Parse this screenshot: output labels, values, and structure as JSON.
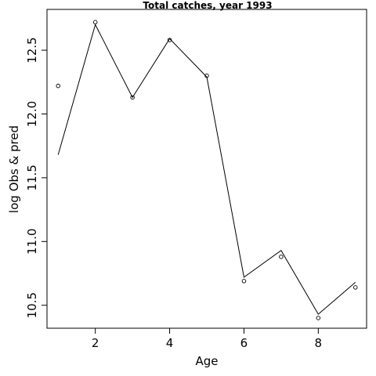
{
  "chart_data": {
    "type": "line",
    "title": "Total catches, year 1993",
    "xlabel": "Age",
    "ylabel": "log Obs & pred",
    "xlim": [
      0.7,
      9.3
    ],
    "ylim": [
      10.32,
      12.82
    ],
    "x_ticks": [
      2,
      4,
      6,
      8
    ],
    "y_ticks": [
      10.5,
      11.0,
      11.5,
      12.0,
      12.5
    ],
    "x_tick_labels": [
      "2",
      "4",
      "6",
      "8"
    ],
    "y_tick_labels": [
      "10.5",
      "11.0",
      "11.5",
      "12.0",
      "12.5"
    ],
    "grid": false,
    "legend": "none",
    "series": [
      {
        "style": "points",
        "x": [
          1,
          2,
          3,
          4,
          5,
          6,
          7,
          8,
          9
        ],
        "values": [
          12.22,
          12.72,
          12.13,
          12.58,
          12.3,
          10.69,
          10.88,
          10.4,
          10.64
        ]
      },
      {
        "style": "line",
        "x": [
          1,
          2,
          3,
          4,
          5,
          6,
          7,
          8,
          9
        ],
        "values": [
          11.68,
          12.7,
          12.13,
          12.59,
          12.29,
          10.72,
          10.93,
          10.43,
          10.68
        ]
      }
    ]
  }
}
